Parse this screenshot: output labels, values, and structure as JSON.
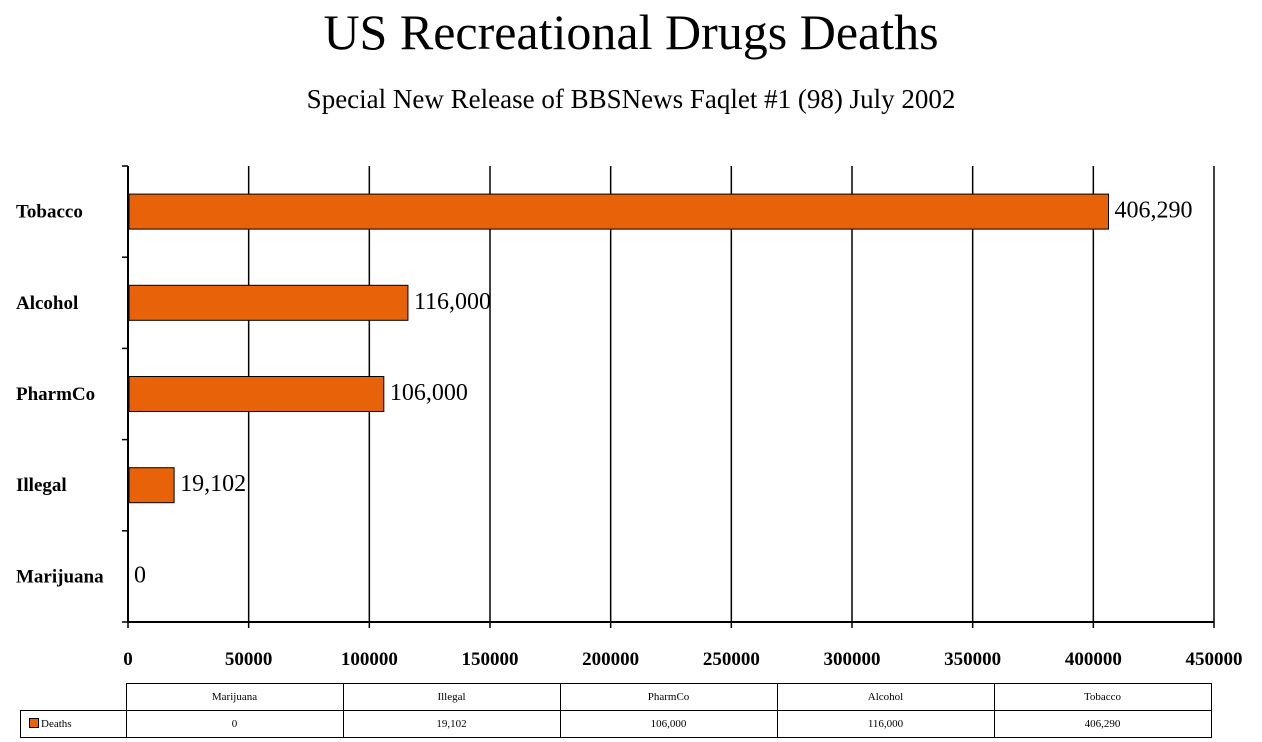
{
  "title": "US Recreational Drugs Deaths",
  "subtitle": "Special New Release of BBSNews Faqlet #1 (98) July 2002",
  "colors": {
    "bar": "#e8620a",
    "bar_outline": "#000000",
    "grid": "#000000"
  },
  "chart_data": {
    "type": "bar",
    "orientation": "horizontal",
    "categories": [
      "Marijuana",
      "Illegal",
      "PharmCo",
      "Alcohol",
      "Tobacco"
    ],
    "category_labels": [
      "Marijuana",
      "Illegal",
      "PharmCo",
      "Alcohol",
      "Tobacco"
    ],
    "series": [
      {
        "name": "Deaths",
        "values": [
          0,
          19102,
          106000,
          116000,
          406290
        ]
      }
    ],
    "data_labels": [
      "0",
      "19,102",
      "106,000",
      "116,000",
      "406,290"
    ],
    "xlim": [
      0,
      450000
    ],
    "x_ticks": [
      0,
      50000,
      100000,
      150000,
      200000,
      250000,
      300000,
      350000,
      400000,
      450000
    ],
    "x_tick_labels": [
      "0",
      "50000",
      "100000",
      "150000",
      "200000",
      "250000",
      "300000",
      "350000",
      "400000",
      "450000"
    ],
    "grid": true,
    "legend_position": "data-table",
    "data_table": {
      "headers": [
        "Marijuana",
        "Illegal",
        "PharmCo",
        "Alcohol",
        "Tobacco"
      ],
      "row_label": "Deaths",
      "values": [
        "0",
        "19,102",
        "106,000",
        "116,000",
        "406,290"
      ]
    }
  }
}
